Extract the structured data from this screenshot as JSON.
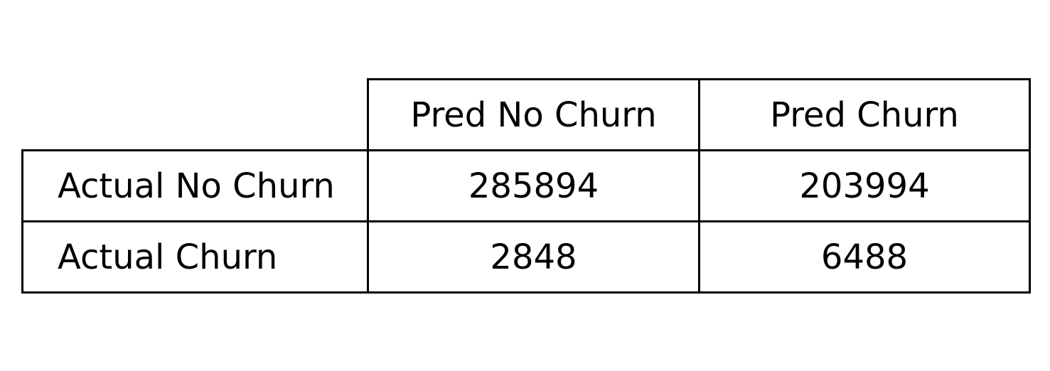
{
  "chart_data": {
    "type": "table",
    "column_headers": [
      "Pred No Churn",
      "Pred Churn"
    ],
    "rows": [
      {
        "label": "Actual No Churn",
        "values": [
          "285894",
          "203994"
        ]
      },
      {
        "label": "Actual Churn",
        "values": [
          "2848",
          "6488"
        ]
      }
    ]
  }
}
